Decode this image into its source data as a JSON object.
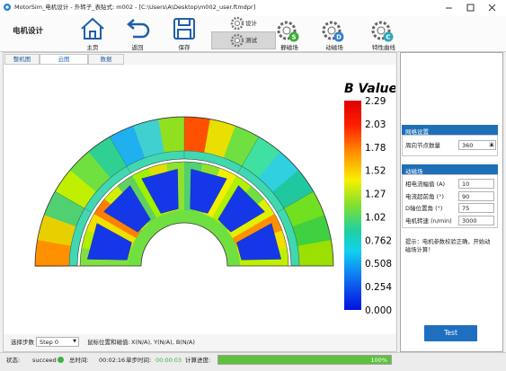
{
  "title_bar": {
    "title": "MotorSim_电机设计 - 外转子_表贴式: m002 - [C:\\Users\\A\\Desktop\\m002_user.ftmdpr]"
  },
  "toolbar": {
    "section": "电机设计",
    "buttons": [
      {
        "label": "主页"
      },
      {
        "label": "返回"
      },
      {
        "label": "保存"
      },
      {
        "label": "设计"
      },
      {
        "label": "测试"
      },
      {
        "label": "静磁场",
        "badge": "S"
      },
      {
        "label": "动磁场",
        "badge": "D"
      },
      {
        "label": "特性曲线",
        "badge": "C"
      }
    ]
  },
  "tabs": [
    "整机图",
    "云图",
    "数据"
  ],
  "plot": {
    "colorbar_title": "B Value",
    "colorbar_labels": [
      "2.29",
      "2.03",
      "1.78",
      "1.52",
      "1.27",
      "1.02",
      "0.762",
      "0.508",
      "0.254",
      "0.000"
    ]
  },
  "mesh_panel": {
    "header": "网格设置",
    "label": "周向节点数量",
    "value": "360"
  },
  "field_panel": {
    "header": "动磁场",
    "fields": [
      {
        "label": "相电流幅值 (A)",
        "value": "10"
      },
      {
        "label": "电流超前角 (°)",
        "value": "90"
      },
      {
        "label": "D轴位置角 (°)",
        "value": "75"
      },
      {
        "label": "电机转速 (n/min)",
        "value": "3000"
      }
    ]
  },
  "hint": "提示：电机参数校验正确，开始动磁场计算！",
  "test_button": "Test",
  "step": {
    "label": "选择步数",
    "value": "Step 0",
    "mouse_label": "鼠标位置和磁值:",
    "mouse_value": "X(N/A), Y(N/A), B(N/A)"
  },
  "status": {
    "state_label": "状态:",
    "state": "succeed",
    "total_label": "总时间:",
    "total": "00:02:16",
    "step_label": "单步时间:",
    "step_time": "00:00:03",
    "progress_label": "计算进度:",
    "progress": "100%"
  }
}
